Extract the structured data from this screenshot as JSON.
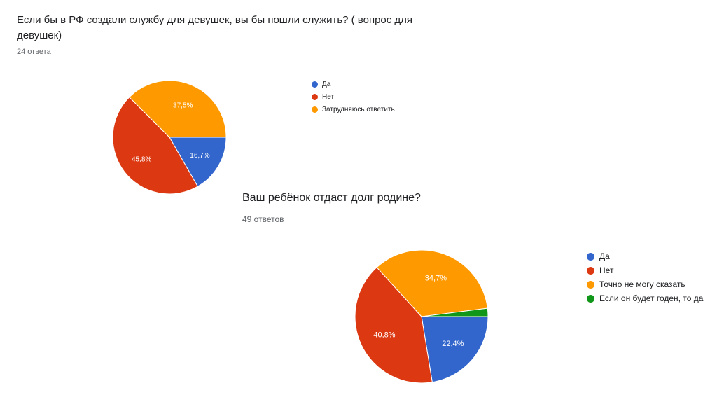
{
  "chart_data": [
    {
      "type": "pie",
      "title": "Если бы в РФ создали службу для девушек, вы бы пошли служить? ( вопрос для девушек)",
      "subtitle": "24 ответа",
      "categories": [
        "Да",
        "Нет",
        "Затрудняюсь ответить"
      ],
      "values": [
        16.7,
        45.8,
        37.5
      ],
      "labels": [
        "16,7%",
        "45,8%",
        "37,5%"
      ],
      "colors": [
        "#3366cc",
        "#dc3912",
        "#ff9900"
      ],
      "legend": "right"
    },
    {
      "type": "pie",
      "title": "Ваш ребёнок отдаст долг родине?",
      "subtitle": "49 ответов",
      "categories": [
        "Да",
        "Нет",
        "Точно не могу сказать",
        "Если он будет годен, то да"
      ],
      "values": [
        22.4,
        40.8,
        34.7,
        2.0
      ],
      "labels": [
        "22,4%",
        "40,8%",
        "34,7%",
        ""
      ],
      "colors": [
        "#3366cc",
        "#dc3912",
        "#ff9900",
        "#109618"
      ],
      "legend": "right"
    }
  ]
}
